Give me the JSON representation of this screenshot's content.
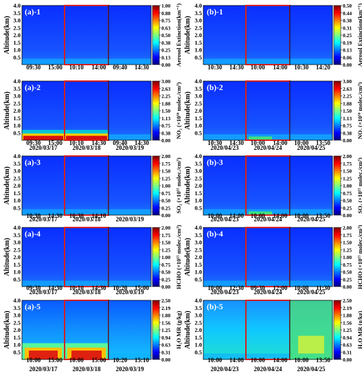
{
  "chart_data": {
    "type": "heatmap",
    "y_axis": {
      "label": "Altitude(km)",
      "ylim": [
        0.0,
        4.0
      ],
      "ticks": [
        "0.5",
        "1.0",
        "1.5",
        "2.0",
        "2.5",
        "3.0",
        "3.5",
        "4.0"
      ]
    },
    "columns": [
      {
        "group": "a",
        "panels": [
          {
            "date": "2020/03/17",
            "highlight": false
          },
          {
            "date": "2020/03/18",
            "highlight": true
          },
          {
            "date": "2020/03/19",
            "highlight": false
          }
        ]
      },
      {
        "group": "b",
        "panels": [
          {
            "date": "2020/04/23",
            "highlight": false
          },
          {
            "date": "2020/04/24",
            "highlight": true
          },
          {
            "date": "2020/04/25",
            "highlight": false
          }
        ]
      }
    ],
    "rows": [
      {
        "a_label": "(a)-1",
        "b_label": "(b)-1",
        "colorbar_label": "Aerosol Extinction(km⁻¹)",
        "a_ticks": [
          "0.00",
          "0.13",
          "0.25",
          "0.38",
          "0.50",
          "0.63",
          "0.75",
          "0.88",
          "1.00"
        ],
        "b_ticks": [
          "0.00",
          "0.06",
          "0.13",
          "0.19",
          "0.25",
          "0.31",
          "0.38",
          "0.44",
          "0.50"
        ],
        "a_time_ticks": [
          [
            "09:30",
            "15:00"
          ],
          [
            "10:10",
            "14:00"
          ],
          [
            "09:40",
            "14:30"
          ]
        ],
        "b_time_ticks": [
          [
            "10:30",
            "14:30"
          ],
          [
            "10:00",
            "14:00"
          ],
          [
            "10:30",
            "14:20"
          ]
        ],
        "show_dates": false
      },
      {
        "a_label": "(a)-2",
        "b_label": "(b)-2",
        "colorbar_label": "NO₂ (×10¹⁶ molec./cm³)",
        "a_ticks": [
          "0.00",
          "0.38",
          "0.75",
          "1.13",
          "1.50",
          "1.88",
          "2.25",
          "2.63",
          "3.00"
        ],
        "b_ticks": [
          "0.00",
          "0.38",
          "0.75",
          "1.13",
          "1.50",
          "1.88",
          "2.25",
          "2.63",
          "3.00"
        ],
        "a_time_ticks": [
          [
            "09:30",
            "15:00"
          ],
          [
            "10:10",
            "14:30"
          ],
          [
            "09:40",
            "14:30"
          ]
        ],
        "b_time_ticks": [
          [
            "10:30",
            "14:30"
          ],
          [
            "10:00",
            "14:00"
          ],
          [
            "10:00",
            "13:50"
          ]
        ],
        "show_dates": true
      },
      {
        "a_label": "(a)-3",
        "b_label": "(b)-3",
        "colorbar_label": "SO₂ (×10¹⁵ molec./cm³)",
        "a_ticks": [
          "0.00",
          "0.25",
          "0.50",
          "0.75",
          "1.00",
          "1.25",
          "1.50",
          "1.75",
          "2.00"
        ],
        "b_ticks": [
          "0.00",
          "0.25",
          "0.50",
          "0.75",
          "1.00",
          "1.25",
          "1.50",
          "1.75",
          "2.00"
        ],
        "a_time_ticks": [
          [
            "10:30",
            "14:30"
          ],
          [
            "10:30",
            "14:10"
          ],
          []
        ],
        "b_time_ticks": [
          [
            "10:00",
            "14:00"
          ],
          [
            "10:00",
            "14:00"
          ],
          [
            "10:00",
            "13:50"
          ]
        ],
        "show_dates": true
      },
      {
        "a_label": "(a)-4",
        "b_label": "(b)-4",
        "colorbar_label": "HCHO (×10¹⁵ molec./cm³)",
        "a_ticks": [
          "0.00",
          "0.25",
          "0.50",
          "0.75",
          "1.00",
          "1.25",
          "1.50",
          "1.75",
          "2.00"
        ],
        "b_ticks": [
          "0.00",
          "0.25",
          "0.50",
          "0.75",
          "1.00",
          "1.25",
          "1.50",
          "1.75",
          "2.00"
        ],
        "a_time_ticks": [
          [
            "09:30",
            "14:30"
          ],
          [
            "10:10",
            "14:30"
          ],
          [
            "10:20",
            "15:00"
          ]
        ],
        "b_time_ticks": [
          [
            "10:00",
            "12:30"
          ],
          [
            "09:30",
            "12:00"
          ],
          [
            "10:00",
            "11:30"
          ]
        ],
        "show_dates": true
      },
      {
        "a_label": "(a)-5",
        "b_label": "(b)-5",
        "colorbar_label": "H₂O MR (g/kg)",
        "a_ticks": [
          "0.00",
          "0.31",
          "0.63",
          "0.94",
          "1.25",
          "1.56",
          "1.88",
          "2.19",
          "2.50"
        ],
        "b_ticks": [
          "0.00",
          "0.31",
          "0.63",
          "0.94",
          "1.25",
          "1.56",
          "1.88",
          "2.19",
          "2.50"
        ],
        "a_time_ticks": [
          [
            "10:00",
            "15:00"
          ],
          [
            "10:00",
            "15:00"
          ],
          [
            "10:20",
            "15:10"
          ]
        ],
        "b_time_ticks": [
          [
            "10:00",
            "14:00"
          ],
          [
            "10:00",
            "14:00"
          ],
          [
            "10:00",
            "13:50"
          ]
        ],
        "show_dates": true
      }
    ]
  },
  "colors": {
    "frame_highlight": "#d42020",
    "label_text": "#ffffff",
    "colormap": [
      "#00007f",
      "#0000ff",
      "#007fff",
      "#00ffff",
      "#7fff7f",
      "#ffff00",
      "#ff7f00",
      "#ff0000",
      "#7f0000"
    ]
  }
}
